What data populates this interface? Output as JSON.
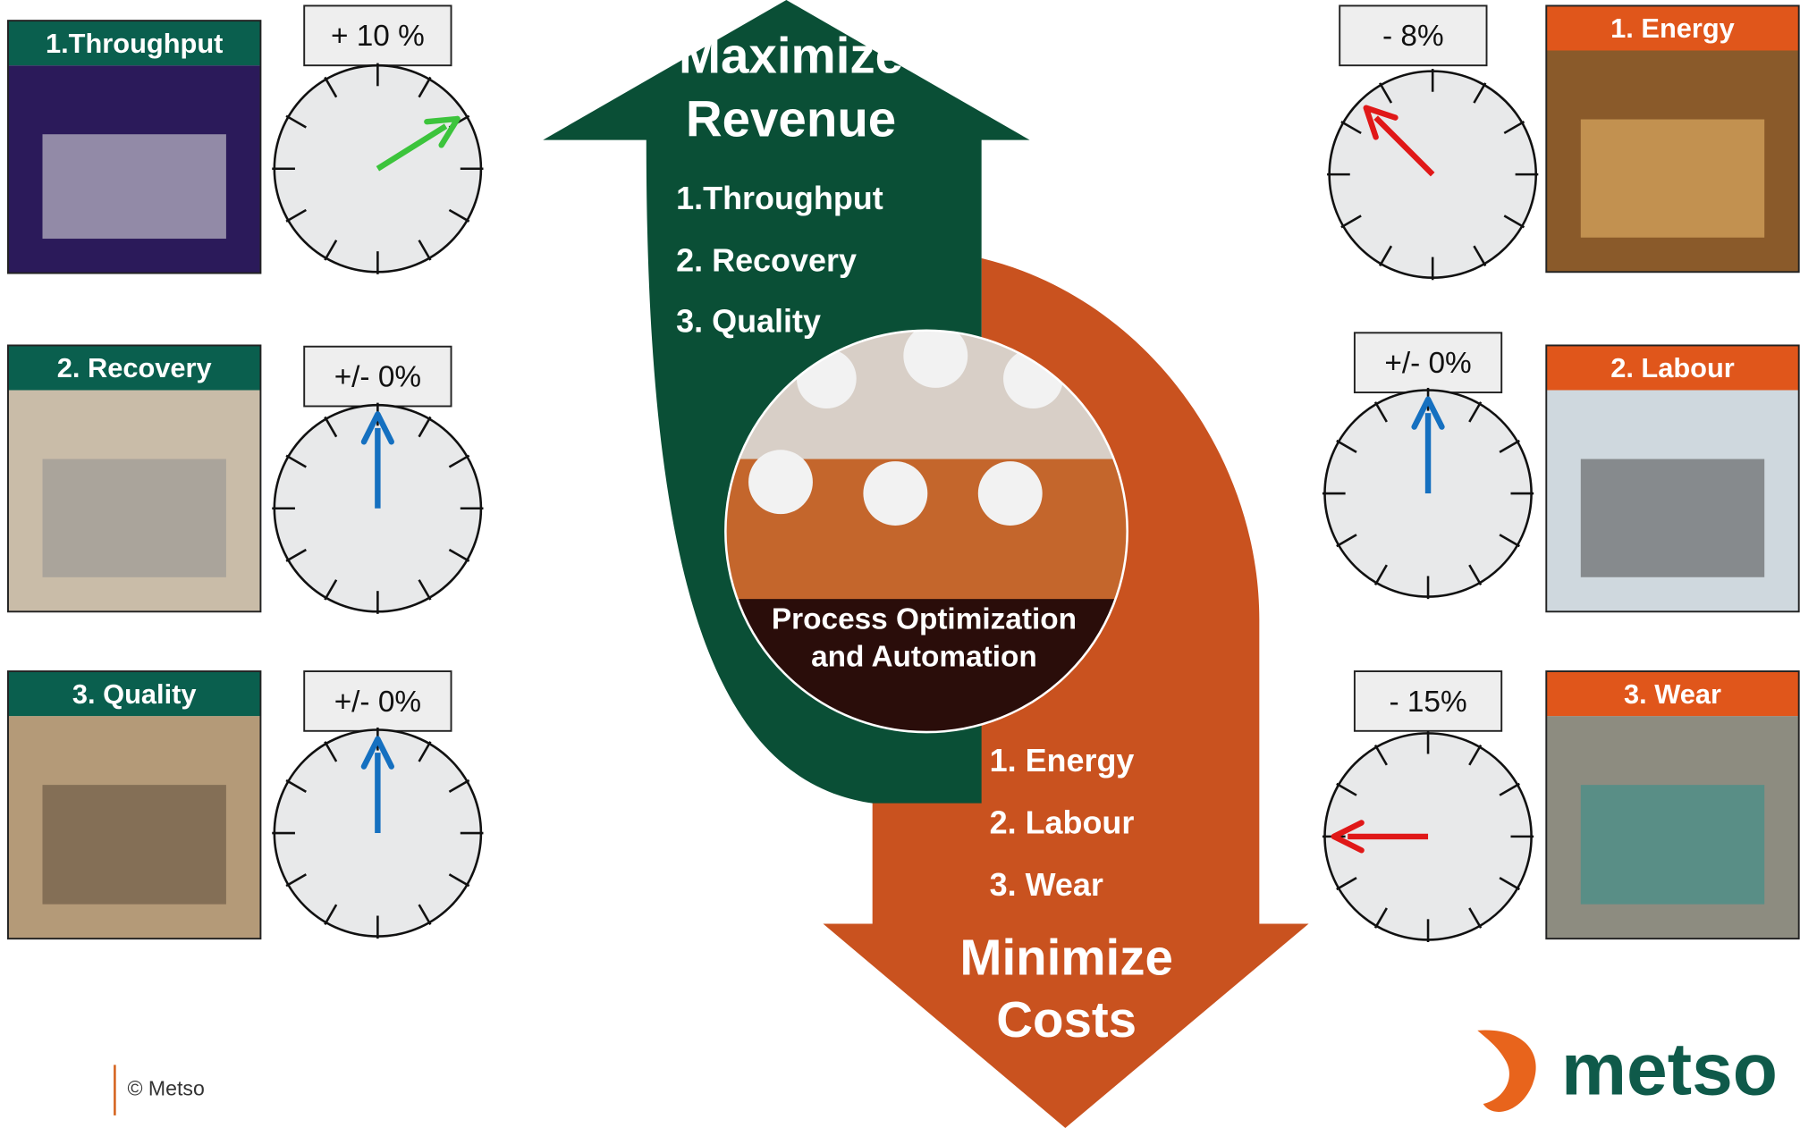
{
  "top_arrow": {
    "title_lines": [
      "Maximize",
      "Revenue"
    ],
    "items": [
      "1.Throughput",
      "2. Recovery",
      "3. Quality"
    ]
  },
  "bottom_arrow": {
    "items": [
      "1. Energy",
      "2. Labour",
      "3. Wear"
    ],
    "title_lines": [
      "Minimize",
      "Costs"
    ]
  },
  "center": {
    "caption_lines": [
      "Process Optimization",
      "and Automation"
    ]
  },
  "left_panels": [
    {
      "label": "1.Throughput",
      "gauge": "+ 10 %"
    },
    {
      "label": "2. Recovery",
      "gauge": "+/- 0%"
    },
    {
      "label": "3. Quality",
      "gauge": "+/- 0%"
    }
  ],
  "right_panels": [
    {
      "label": "1. Energy",
      "gauge": "- 8%"
    },
    {
      "label": "2. Labour",
      "gauge": "+/- 0%"
    },
    {
      "label": "3. Wear",
      "gauge": "- 15%"
    }
  ],
  "footer": {
    "copyright": "© Metso",
    "logo": "metso"
  }
}
